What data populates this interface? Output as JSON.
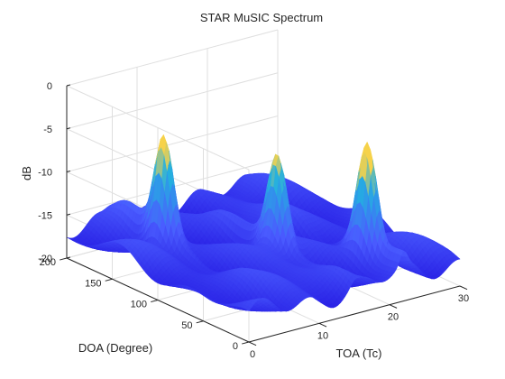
{
  "chart_data": {
    "type": "surface",
    "title": "STAR MuSIC Spectrum",
    "xlabel": "TOA (Tc)",
    "ylabel": "DOA (Degree)",
    "zlabel": "dB",
    "xlim": [
      0,
      30
    ],
    "ylim": [
      0,
      200
    ],
    "zlim": [
      -20,
      0
    ],
    "xticks": [
      0,
      10,
      20,
      30
    ],
    "yticks": [
      0,
      50,
      100,
      150,
      200
    ],
    "zticks": [
      0,
      -5,
      -10,
      -15,
      -20
    ],
    "grid": true,
    "floor_db": -17,
    "peaks": [
      {
        "toa": 6,
        "doa": 140,
        "db": -6
      },
      {
        "toa": 15,
        "doa": 85,
        "db": -8
      },
      {
        "toa": 22,
        "doa": 40,
        "db": -6
      }
    ],
    "colors": {
      "surface_low": "#2a23e6",
      "surface_mid": "#4a5cff",
      "surface_high": "#24b0e0",
      "peak_tip": "#f6d24a",
      "axis": "#262626",
      "grid": "#dfdfdf"
    }
  }
}
